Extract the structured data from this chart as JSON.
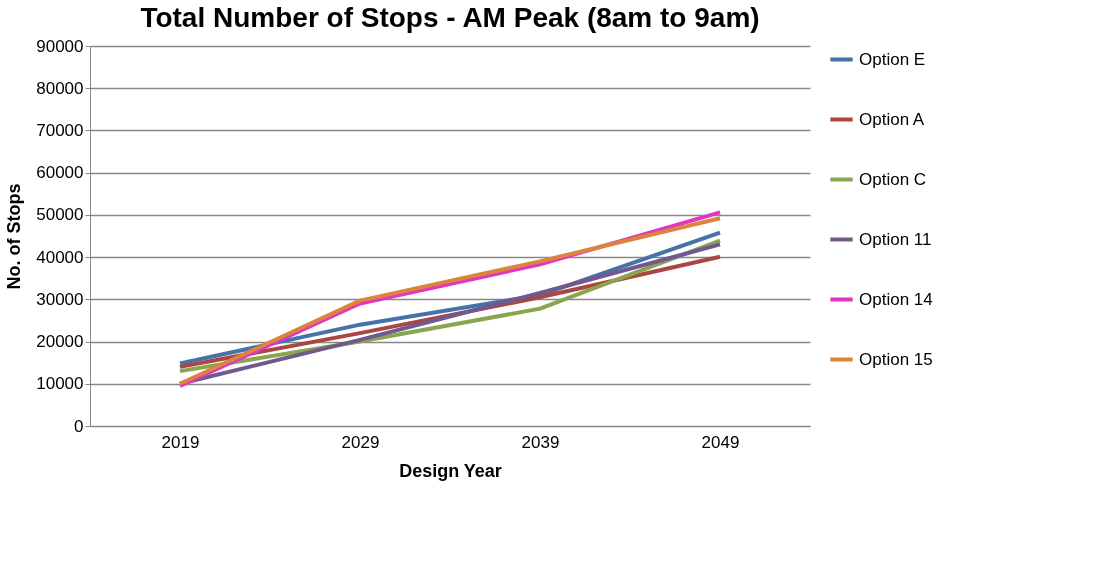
{
  "chart_data": {
    "type": "line",
    "title": "Total Number of Stops - AM Peak (8am to 9am)",
    "xlabel": "Design Year",
    "ylabel": "No. of Stops",
    "categories": [
      "2019",
      "2029",
      "2039",
      "2049"
    ],
    "series": [
      {
        "name": "Option E",
        "color": "#4572a7",
        "values": [
          14800,
          24000,
          31000,
          45800
        ]
      },
      {
        "name": "Option A",
        "color": "#aa4643",
        "values": [
          14000,
          22000,
          30500,
          40100
        ]
      },
      {
        "name": "Option C",
        "color": "#89a54e",
        "values": [
          13000,
          20000,
          27800,
          43900
        ]
      },
      {
        "name": "Option 11",
        "color": "#71588f",
        "values": [
          10000,
          20400,
          31500,
          43000
        ]
      },
      {
        "name": "Option 14",
        "color": "#e334c3",
        "values": [
          9500,
          29000,
          38300,
          50600
        ]
      },
      {
        "name": "Option 15",
        "color": "#db843d",
        "values": [
          10000,
          29700,
          39000,
          49200
        ]
      }
    ],
    "ylim": [
      0,
      90000
    ],
    "yticks": [
      0,
      10000,
      20000,
      30000,
      40000,
      50000,
      60000,
      70000,
      80000,
      90000
    ],
    "grid": "y",
    "legend": "right",
    "marker": "none",
    "line_style": "solid"
  }
}
